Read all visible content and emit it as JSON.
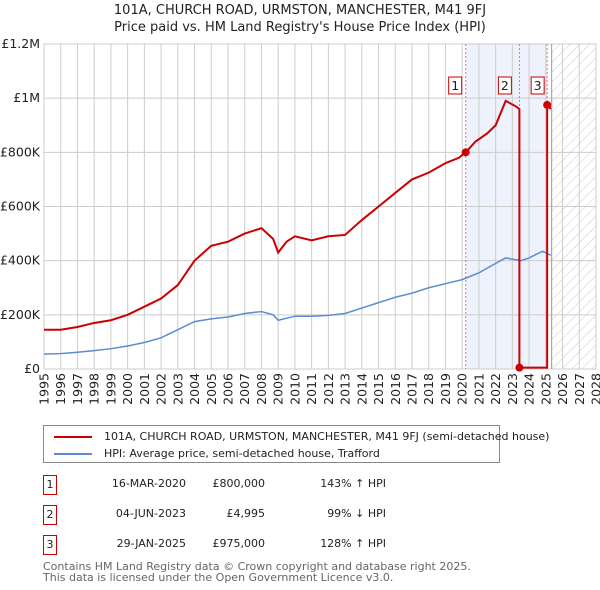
{
  "chart_data": {
    "type": "line",
    "title": "101A, CHURCH ROAD, URMSTON, MANCHESTER, M41 9FJ",
    "subtitle": "Price paid vs. HM Land Registry's House Price Index (HPI)",
    "xlim": [
      1995,
      2028
    ],
    "ylim": [
      0,
      1200000
    ],
    "x_ticks": [
      "1995",
      "1996",
      "1997",
      "1998",
      "1999",
      "2000",
      "2001",
      "2002",
      "2003",
      "2004",
      "2005",
      "2006",
      "2007",
      "2008",
      "2009",
      "2010",
      "2011",
      "2012",
      "2013",
      "2014",
      "2015",
      "2016",
      "2017",
      "2018",
      "2019",
      "2020",
      "2021",
      "2022",
      "2023",
      "2024",
      "2025",
      "2026",
      "2027",
      "2028"
    ],
    "y_ticks": [
      {
        "v": 0,
        "label": "£0"
      },
      {
        "v": 200000,
        "label": "£200K"
      },
      {
        "v": 400000,
        "label": "£400K"
      },
      {
        "v": 600000,
        "label": "£600K"
      },
      {
        "v": 800000,
        "label": "£800K"
      },
      {
        "v": 1000000,
        "label": "£1M"
      },
      {
        "v": 1200000,
        "label": "£1.2M"
      }
    ],
    "grid": true,
    "shaded_range": [
      2020.21,
      2025.08
    ],
    "future_hatch_from": 2025.35,
    "series": [
      {
        "name": "101A, CHURCH ROAD, URMSTON, MANCHESTER, M41 9FJ (semi-detached house)",
        "color": "#cc0000",
        "x": [
          1995,
          1996,
          1997,
          1998,
          1999,
          2000,
          2001,
          2002,
          2003,
          2004,
          2005,
          2006,
          2007,
          2008,
          2008.7,
          2009,
          2009.5,
          2010,
          2011,
          2012,
          2013,
          2014,
          2015,
          2016,
          2017,
          2018,
          2019,
          2019.8,
          2020.21,
          2020.8,
          2021.5,
          2022,
          2022.6,
          2023.2,
          2023.42,
          2023.42,
          2025.08,
          2025.08,
          2025.3
        ],
        "y": [
          145000,
          145000,
          155000,
          170000,
          180000,
          200000,
          230000,
          260000,
          310000,
          400000,
          455000,
          470000,
          500000,
          520000,
          480000,
          430000,
          470000,
          490000,
          475000,
          490000,
          495000,
          550000,
          600000,
          650000,
          700000,
          725000,
          760000,
          780000,
          800000,
          840000,
          870000,
          900000,
          990000,
          970000,
          960000,
          4995,
          4995,
          975000,
          960000
        ]
      },
      {
        "name": "HPI: Average price, semi-detached house, Trafford",
        "color": "#5b8bd0",
        "x": [
          1995,
          1996,
          1997,
          1998,
          1999,
          2000,
          2001,
          2002,
          2003,
          2004,
          2005,
          2006,
          2007,
          2008,
          2008.7,
          2009,
          2010,
          2011,
          2012,
          2013,
          2014,
          2015,
          2016,
          2017,
          2018,
          2019,
          2020,
          2021,
          2022,
          2022.6,
          2023.5,
          2024,
          2024.8,
          2025.3
        ],
        "y": [
          55000,
          57000,
          62000,
          68000,
          75000,
          85000,
          98000,
          115000,
          145000,
          175000,
          185000,
          192000,
          205000,
          212000,
          200000,
          180000,
          195000,
          195000,
          198000,
          205000,
          225000,
          245000,
          265000,
          280000,
          300000,
          315000,
          330000,
          355000,
          390000,
          410000,
          400000,
          410000,
          435000,
          420000
        ]
      }
    ],
    "sales": [
      {
        "n": "1",
        "x": 2020.21,
        "y": 800000,
        "date": "16-MAR-2020",
        "price": "£800,000",
        "hpi": "143% ↑ HPI"
      },
      {
        "n": "2",
        "x": 2023.42,
        "y": 4995,
        "date": "04-JUN-2023",
        "price": "£4,995",
        "hpi": "99% ↓ HPI"
      },
      {
        "n": "3",
        "x": 2025.08,
        "y": 975000,
        "date": "29-JAN-2025",
        "price": "£975,000",
        "hpi": "128% ↑ HPI"
      }
    ]
  },
  "footer": {
    "line1": "Contains HM Land Registry data © Crown copyright and database right 2025.",
    "line2": "This data is licensed under the Open Government Licence v3.0."
  }
}
